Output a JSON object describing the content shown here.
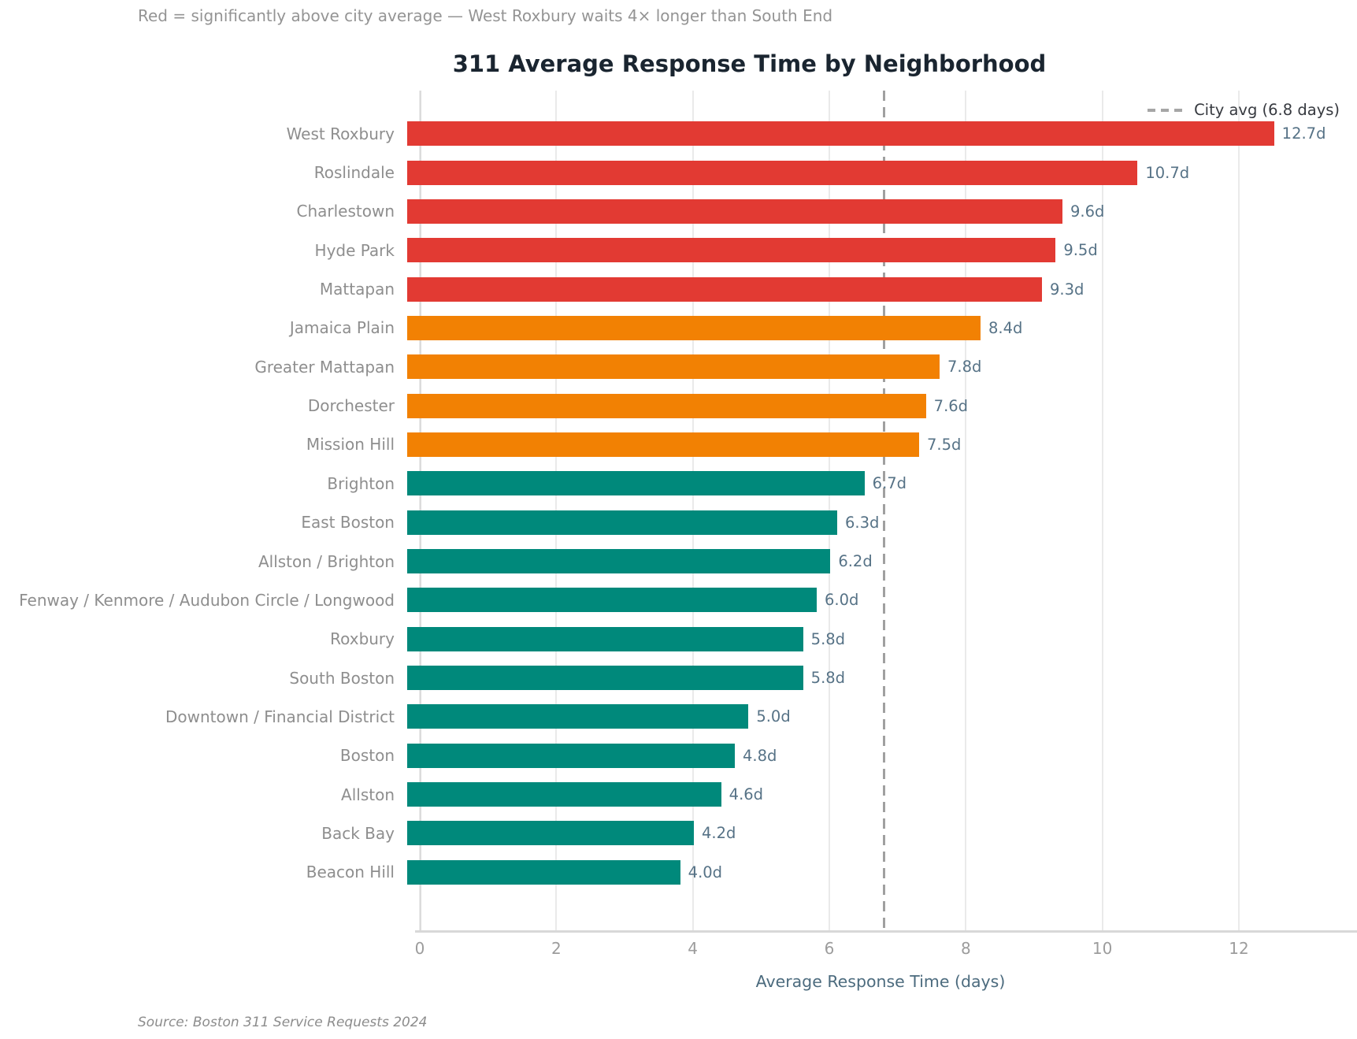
{
  "header": {
    "subtitle": "Red = significantly above city average — West Roxbury waits 4× longer than South End",
    "title": "311 Average Response Time by Neighborhood"
  },
  "footer": {
    "source": "Source: Boston 311 Service Requests 2024"
  },
  "chart_data": {
    "type": "bar",
    "orientation": "horizontal",
    "title": "311 Average Response Time by Neighborhood",
    "categories": [
      "West Roxbury",
      "Roslindale",
      "Charlestown",
      "Hyde Park",
      "Mattapan",
      "Jamaica Plain",
      "Greater Mattapan",
      "Dorchester",
      "Mission Hill",
      "Brighton",
      "East Boston",
      "Allston / Brighton",
      "Fenway / Kenmore / Audubon Circle / Longwood",
      "Roxbury",
      "South Boston",
      "Downtown / Financial District",
      "Boston",
      "Allston",
      "Back Bay",
      "Beacon Hill"
    ],
    "values": [
      12.7,
      10.7,
      9.6,
      9.5,
      9.3,
      8.4,
      7.8,
      7.6,
      7.5,
      6.7,
      6.3,
      6.2,
      6.0,
      5.8,
      5.8,
      5.0,
      4.8,
      4.6,
      4.2,
      4.0
    ],
    "value_labels": [
      "12.7d",
      "10.7d",
      "9.6d",
      "9.5d",
      "9.3d",
      "8.4d",
      "7.8d",
      "7.6d",
      "7.5d",
      "6.7d",
      "6.3d",
      "6.2d",
      "6.0d",
      "5.8d",
      "5.8d",
      "5.0d",
      "4.8d",
      "4.6d",
      "4.2d",
      "4.0d"
    ],
    "bar_color_keys": [
      "red",
      "red",
      "red",
      "red",
      "red",
      "orange",
      "orange",
      "orange",
      "orange",
      "teal",
      "teal",
      "teal",
      "teal",
      "teal",
      "teal",
      "teal",
      "teal",
      "teal",
      "teal",
      "teal"
    ],
    "color_map": {
      "red": "#E23A33",
      "orange": "#F28103",
      "teal": "#00897B"
    },
    "xlabel": "Average Response Time (days)",
    "xticks": [
      0,
      2,
      4,
      6,
      8,
      10,
      12
    ],
    "xlim": [
      0,
      13.5
    ],
    "grid": true,
    "legend_position": "top-right-inside",
    "reference_line": {
      "value": 6.8,
      "label": "City avg (6.8 days)",
      "style": "dashed",
      "color": "#A0A0A0"
    }
  }
}
